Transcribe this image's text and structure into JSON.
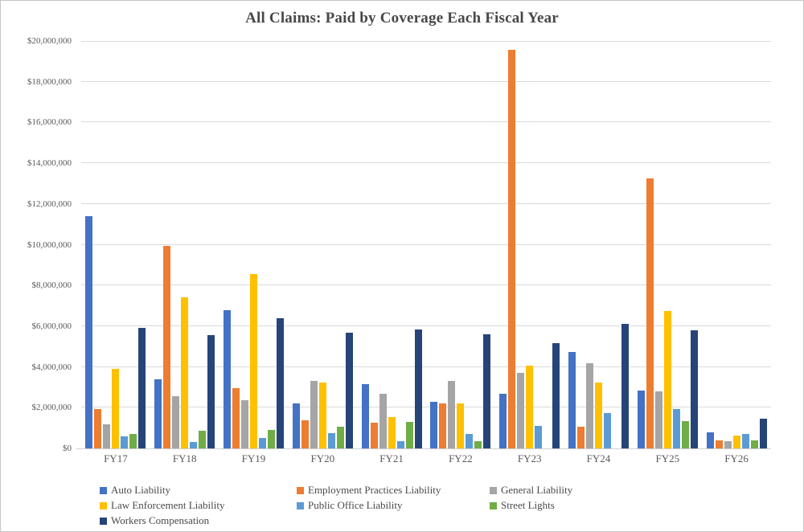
{
  "title": "All Claims: Paid by Coverage Each Fiscal Year",
  "chart_data": {
    "type": "bar",
    "title": "All Claims: Paid by Coverage Each Fiscal Year",
    "categories": [
      "FY17",
      "FY18",
      "FY19",
      "FY20",
      "FY21",
      "FY22",
      "FY23",
      "FY24",
      "FY25",
      "FY26"
    ],
    "series": [
      {
        "name": "Auto Liability",
        "color": "#4472C4",
        "values": [
          11400000,
          3400000,
          6800000,
          2200000,
          3150000,
          2300000,
          2700000,
          4750000,
          2850000,
          800000
        ]
      },
      {
        "name": "Employment Practices Liability",
        "color": "#ED7D31",
        "values": [
          1950000,
          9950000,
          2950000,
          1400000,
          1250000,
          2200000,
          19550000,
          1050000,
          13250000,
          400000
        ]
      },
      {
        "name": "General Liability",
        "color": "#A5A5A5",
        "values": [
          1200000,
          2550000,
          2350000,
          3300000,
          2700000,
          3300000,
          3700000,
          4200000,
          2800000,
          350000
        ]
      },
      {
        "name": "Law Enforcement Liability",
        "color": "#FFC000",
        "values": [
          3900000,
          7400000,
          8550000,
          3250000,
          1550000,
          2200000,
          4050000,
          3250000,
          6750000,
          650000
        ]
      },
      {
        "name": "Public Office Liability",
        "color": "#5B9BD5",
        "values": [
          600000,
          300000,
          500000,
          750000,
          350000,
          700000,
          1100000,
          1750000,
          1950000,
          700000
        ]
      },
      {
        "name": "Street Lights",
        "color": "#70AD47",
        "values": [
          700000,
          850000,
          900000,
          1050000,
          1300000,
          350000,
          0,
          0,
          1350000,
          400000
        ]
      },
      {
        "name": "Workers Compensation",
        "color": "#264478",
        "values": [
          5900000,
          5550000,
          6400000,
          5700000,
          5850000,
          5600000,
          5150000,
          6100000,
          5800000,
          1450000
        ]
      }
    ],
    "ylim": [
      0,
      20000000
    ],
    "ytick_step": 2000000,
    "ytick_prefix": "$",
    "grid": true,
    "legend_position": "bottom-left"
  }
}
